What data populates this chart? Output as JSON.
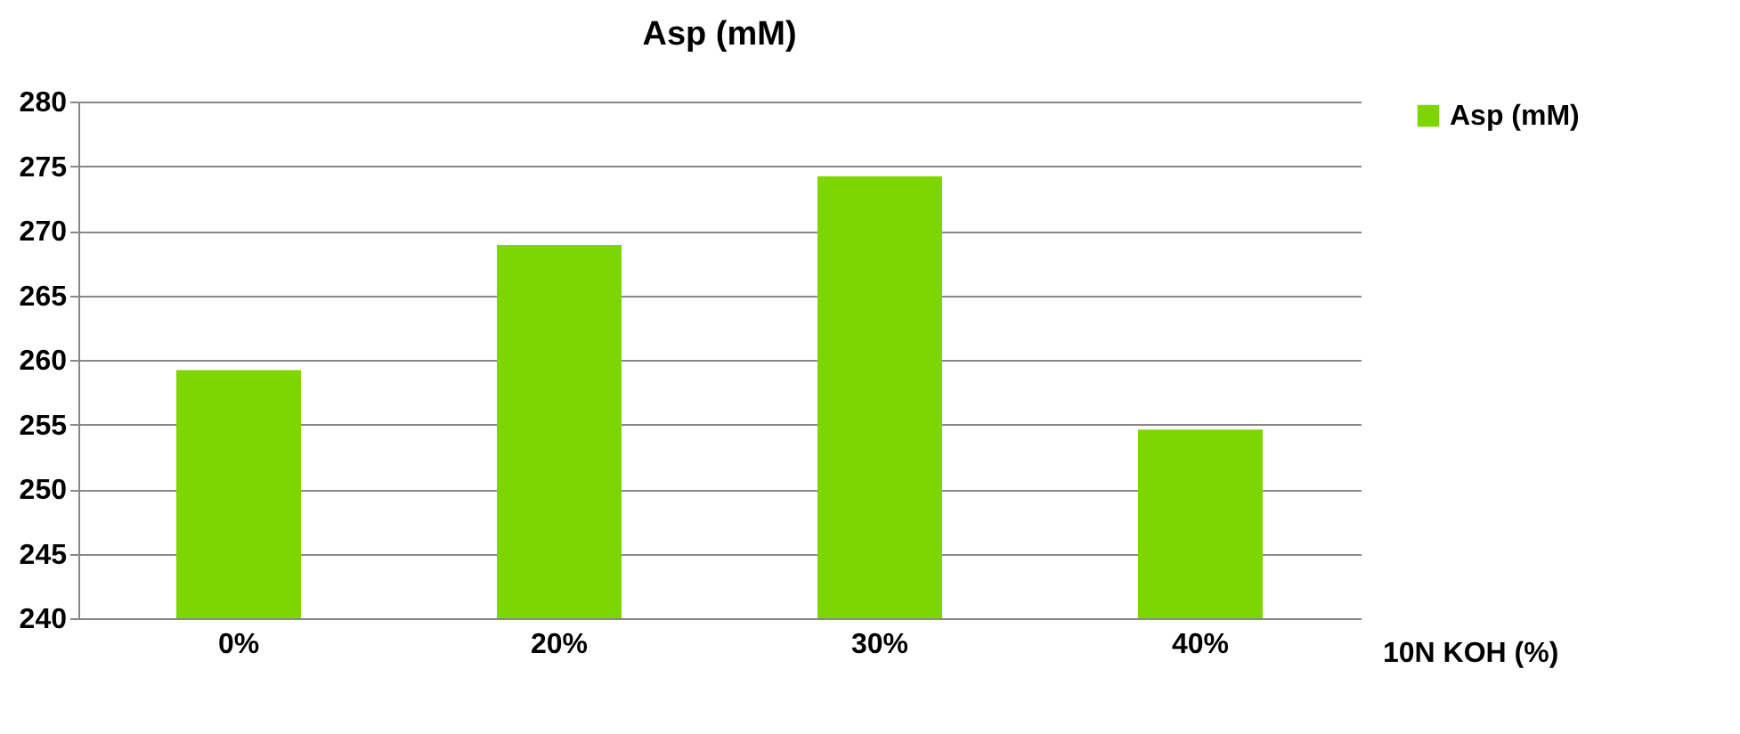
{
  "chart_data": {
    "type": "bar",
    "title": "Asp (mM)",
    "xlabel": "10N KOH (%)",
    "categories": [
      "0%",
      "20%",
      "30%",
      "40%"
    ],
    "series": [
      {
        "name": "Asp (mM)",
        "color": "#7ed600",
        "values": [
          259.2,
          268.9,
          274.2,
          254.6
        ]
      }
    ],
    "ylim": [
      240,
      280
    ],
    "yticks": [
      240,
      245,
      250,
      255,
      260,
      265,
      270,
      275,
      280
    ],
    "grid": "y",
    "legend": "right"
  }
}
